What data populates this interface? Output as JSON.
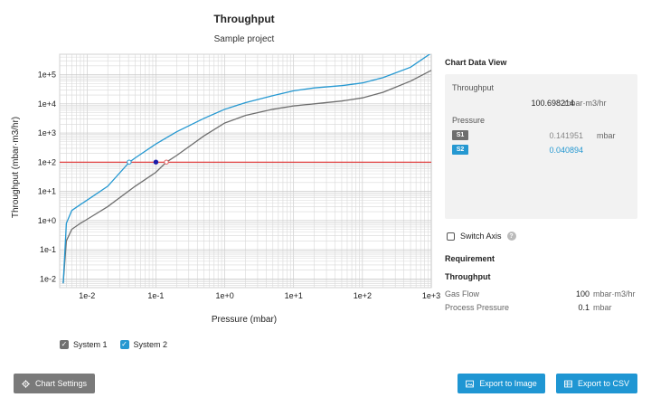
{
  "chart_data": {
    "type": "line",
    "title": "Throughput",
    "subtitle": "Sample project",
    "xlabel": "Pressure (mbar)",
    "ylabel": "Throughput (mbar·m3/hr)",
    "x_scale": "log",
    "y_scale": "log",
    "xlim": [
      0.004,
      1000
    ],
    "ylim": [
      0.005,
      500000
    ],
    "x_ticks": [
      "1e-2",
      "1e-1",
      "1e+0",
      "1e+1",
      "1e+2",
      "1e+3"
    ],
    "y_ticks": [
      "1e-2",
      "1e-1",
      "1e+0",
      "1e+1",
      "1e+2",
      "1e+3",
      "1e+4",
      "1e+5"
    ],
    "grid": true,
    "legend_position": "bottom-left",
    "requirement_line_y": 100,
    "series": [
      {
        "name": "System 1",
        "color": "#6e6e6e",
        "points": [
          [
            0.0045,
            0.007
          ],
          [
            0.005,
            0.2
          ],
          [
            0.006,
            0.5
          ],
          [
            0.008,
            0.8
          ],
          [
            0.01,
            1.1
          ],
          [
            0.02,
            3
          ],
          [
            0.05,
            15
          ],
          [
            0.1,
            45
          ],
          [
            0.142,
            100
          ],
          [
            0.2,
            170
          ],
          [
            0.5,
            800
          ],
          [
            1,
            2200
          ],
          [
            2,
            4000
          ],
          [
            5,
            6500
          ],
          [
            10,
            8500
          ],
          [
            20,
            10000
          ],
          [
            50,
            12500
          ],
          [
            100,
            16000
          ],
          [
            200,
            25000
          ],
          [
            500,
            60000
          ],
          [
            1000,
            140000
          ]
        ]
      },
      {
        "name": "System 2",
        "color": "#2598d1",
        "points": [
          [
            0.0045,
            0.007
          ],
          [
            0.005,
            0.8
          ],
          [
            0.006,
            2.2
          ],
          [
            0.008,
            3.5
          ],
          [
            0.01,
            5
          ],
          [
            0.02,
            15
          ],
          [
            0.041,
            100
          ],
          [
            0.05,
            140
          ],
          [
            0.1,
            420
          ],
          [
            0.2,
            1100
          ],
          [
            0.5,
            3200
          ],
          [
            1,
            6500
          ],
          [
            2,
            11000
          ],
          [
            5,
            19000
          ],
          [
            10,
            28000
          ],
          [
            20,
            35000
          ],
          [
            50,
            42000
          ],
          [
            100,
            52000
          ],
          [
            200,
            80000
          ],
          [
            500,
            180000
          ],
          [
            1000,
            550000
          ]
        ]
      }
    ],
    "markers": [
      {
        "x": 0.040894,
        "y": 100.698214,
        "style": "hollow",
        "color": "#2598d1"
      },
      {
        "x": 0.1,
        "y": 100.698214,
        "style": "filled",
        "color": "#1a1aa8"
      },
      {
        "x": 0.141951,
        "y": 100.698214,
        "style": "hollow",
        "color": "#e06060"
      }
    ]
  },
  "legend": {
    "system1": "System 1",
    "system2": "System 2"
  },
  "data_view": {
    "title": "Chart Data View",
    "throughput_label": "Throughput",
    "throughput_value": "100.698214",
    "throughput_unit": "mbar·m3/hr",
    "pressure_label": "Pressure",
    "s1_tag": "S1",
    "s1_value": "0.141951",
    "s1_unit": "mbar",
    "s2_tag": "S2",
    "s2_value": "0.040894"
  },
  "switch_axis_label": "Switch Axis",
  "requirement": {
    "title": "Requirement",
    "subtitle": "Throughput",
    "gas_flow_label": "Gas Flow",
    "gas_flow_value": "100",
    "gas_flow_unit": "mbar·m3/hr",
    "process_pressure_label": "Process Pressure",
    "process_pressure_value": "0.1",
    "process_pressure_unit": "mbar"
  },
  "buttons": {
    "chart_settings": "Chart Settings",
    "export_image": "Export to Image",
    "export_csv": "Export to CSV"
  },
  "colors": {
    "accent": "#1f96d3",
    "requirement_line": "#e03030",
    "grid": "#d8d8d8"
  }
}
